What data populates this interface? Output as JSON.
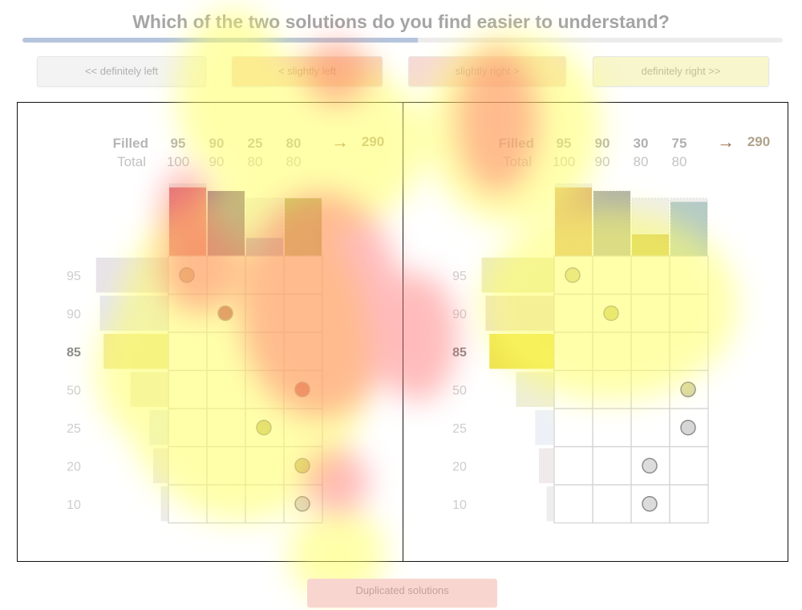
{
  "question": "Which of the two solutions do you find easier to understand?",
  "progress": 0.52,
  "choices": {
    "definitely_left": "<< definitely left",
    "slightly_left": "< slightly left",
    "slightly_right": "slightly right >",
    "definitely_right": "definitely right >>"
  },
  "footer_button": "Duplicated solutions",
  "solutions": [
    {
      "id": "left",
      "header": {
        "filled_label": "Filled",
        "total_label": "Total",
        "arrow": "→",
        "result": "290"
      },
      "columns": [
        {
          "filled": "95",
          "total": "100",
          "bar_filled": 95,
          "bar_total": 100,
          "color": "#d8646f"
        },
        {
          "filled": "90",
          "total": "90",
          "bar_filled": 90,
          "bar_total": 90,
          "color": "#6e4a86"
        },
        {
          "filled": "25",
          "total": "80",
          "bar_filled": 25,
          "bar_total": 80,
          "color": "#9b9ccb"
        },
        {
          "filled": "80",
          "total": "80",
          "bar_filled": 80,
          "bar_total": 80,
          "color": "#8a9a4a"
        }
      ],
      "rows": [
        {
          "label": "95",
          "bold": false,
          "color": "#e7e3ea",
          "value": 95
        },
        {
          "label": "90",
          "bold": false,
          "color": "#e5e6f2",
          "value": 90
        },
        {
          "label": "85",
          "bold": true,
          "color": "#efe5a3",
          "value": 85
        },
        {
          "label": "50",
          "bold": false,
          "color": "#eeeed8",
          "value": 50
        },
        {
          "label": "25",
          "bold": false,
          "color": "#e8eef6",
          "value": 25
        },
        {
          "label": "20",
          "bold": false,
          "color": "#eeeaea",
          "value": 20
        },
        {
          "label": "10",
          "bold": false,
          "color": "#ececec",
          "value": 10
        }
      ],
      "assignments": [
        [
          0,
          0
        ],
        [
          1,
          1
        ],
        [
          4,
          2
        ],
        [
          3,
          3
        ],
        [
          5,
          3
        ],
        [
          6,
          3
        ]
      ],
      "dot_colors": [
        "#c9b08c",
        "#b64a68",
        "#c8c07a",
        "#c9525e",
        "#c6c280",
        "#d6d6d6"
      ]
    },
    {
      "id": "right",
      "header": {
        "filled_label": "Filled",
        "total_label": "Total",
        "arrow": "→",
        "result": "290"
      },
      "columns": [
        {
          "filled": "95",
          "total": "100",
          "bar_filled": 95,
          "bar_total": 100,
          "color": "#dcae63"
        },
        {
          "filled": "90",
          "total": "90",
          "bar_filled": 90,
          "bar_total": 90,
          "color": "#a5a89a"
        },
        {
          "filled": "30",
          "total": "80",
          "bar_filled": 30,
          "bar_total": 80,
          "color": "#c9b948"
        },
        {
          "filled": "75",
          "total": "80",
          "bar_filled": 75,
          "bar_total": 80,
          "color": "#a9c3c0"
        }
      ],
      "rows": [
        {
          "label": "95",
          "bold": false,
          "color": "#ecebc2",
          "value": 95
        },
        {
          "label": "90",
          "bold": false,
          "color": "#eadfd2",
          "value": 90
        },
        {
          "label": "85",
          "bold": true,
          "color": "#ede14f",
          "value": 85
        },
        {
          "label": "50",
          "bold": false,
          "color": "#eeeed9",
          "value": 50
        },
        {
          "label": "25",
          "bold": false,
          "color": "#edf1f7",
          "value": 25
        },
        {
          "label": "20",
          "bold": false,
          "color": "#f0eaea",
          "value": 20
        },
        {
          "label": "10",
          "bold": false,
          "color": "#eeeeee",
          "value": 10
        }
      ],
      "assignments": [
        [
          0,
          0
        ],
        [
          1,
          1
        ],
        [
          3,
          3
        ],
        [
          4,
          3
        ],
        [
          5,
          2
        ],
        [
          6,
          2
        ]
      ],
      "dot_colors": [
        "#d8d29c",
        "#d4cc7a",
        "#d8d6a6",
        "#d6d6d6",
        "#dcdcdc",
        "#dcdcdc"
      ]
    }
  ]
}
